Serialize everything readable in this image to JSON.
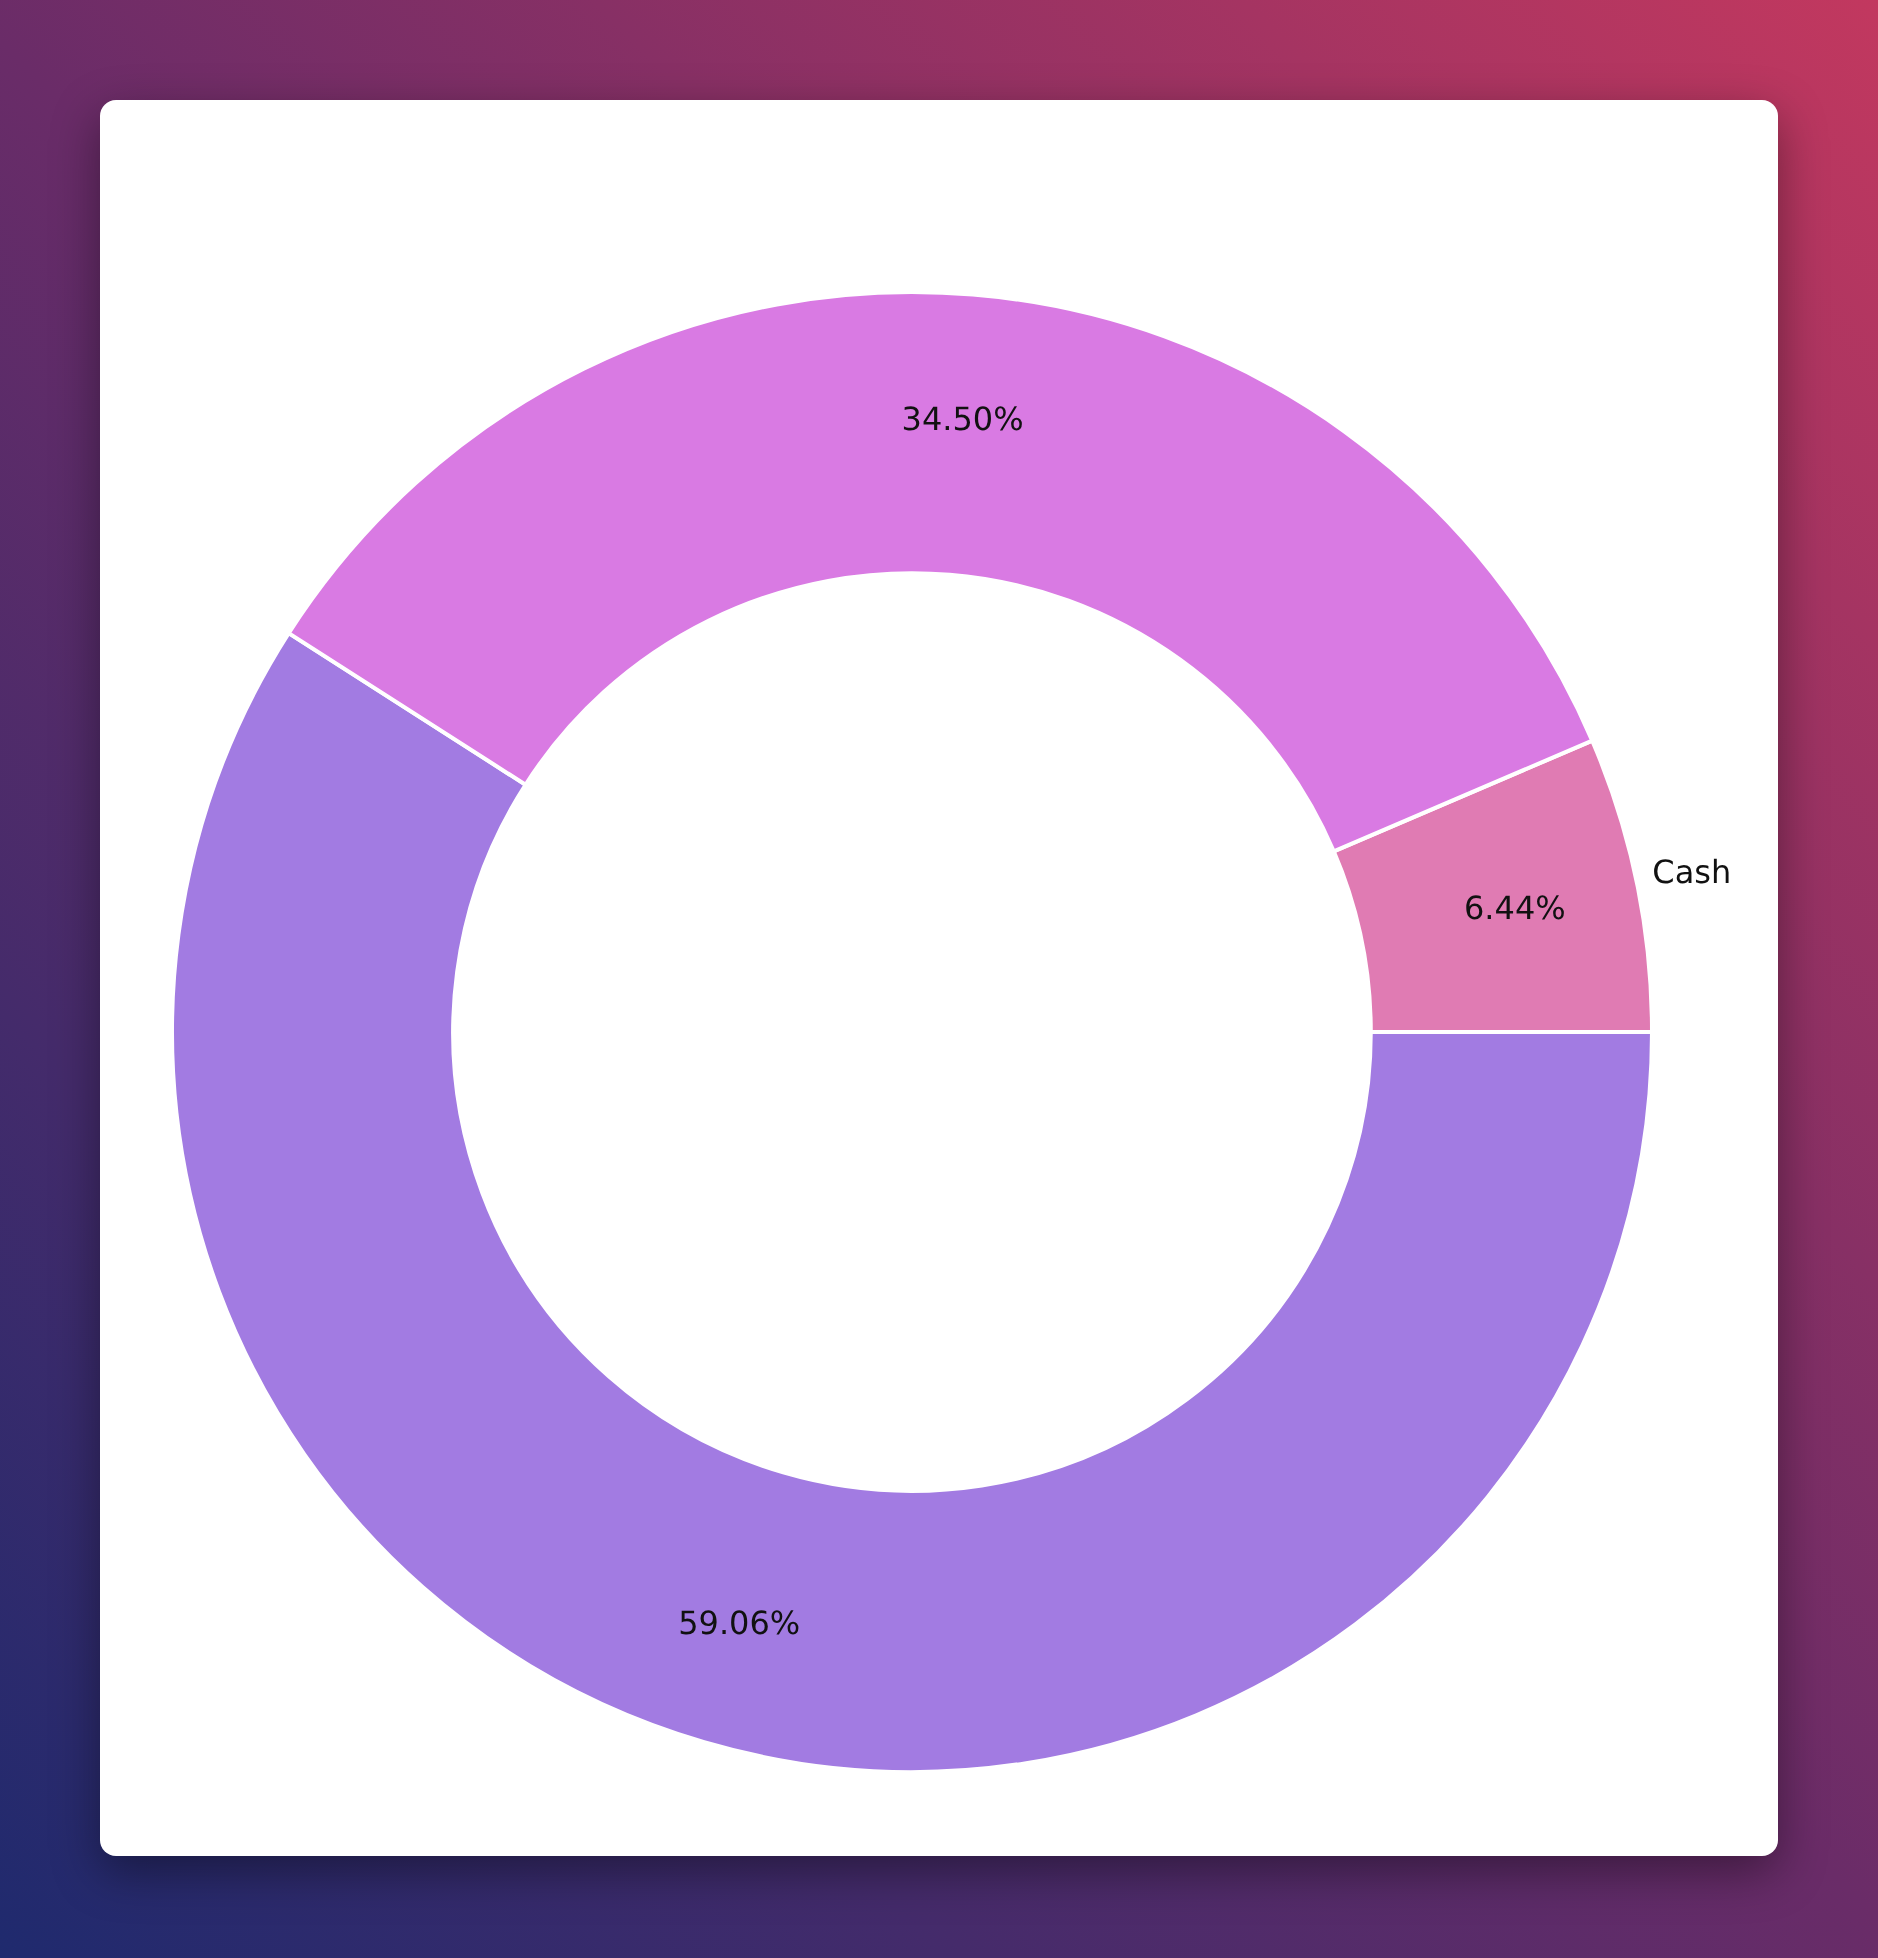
{
  "chart_data": {
    "type": "donut",
    "categories": [
      null,
      "Cash",
      null
    ],
    "values": [
      59.06,
      6.44,
      34.5
    ],
    "colors": [
      "#a27be2",
      "#e07bb3",
      "#d97ae3"
    ],
    "value_labels": [
      "59.06%",
      "6.44%",
      "34.50%"
    ],
    "legend": false
  }
}
